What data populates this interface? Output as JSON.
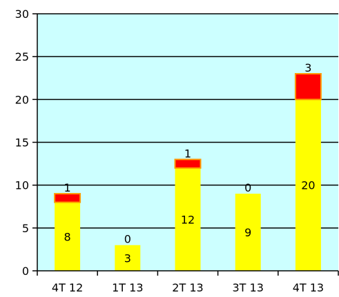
{
  "chart_data": {
    "type": "bar",
    "stacked": true,
    "title": "",
    "xlabel": "",
    "ylabel": "",
    "ylim": [
      0,
      30
    ],
    "yticks": [
      0,
      5,
      10,
      15,
      20,
      25,
      30
    ],
    "grid": "horizontal",
    "legend": "none",
    "categories": [
      "4T 12",
      "1T 13",
      "2T 13",
      "3T 13",
      "4T 13"
    ],
    "series": [
      {
        "values": [
          8,
          3,
          12,
          9,
          20
        ],
        "color": "#ffff00",
        "label_text": [
          "8",
          "3",
          "12",
          "9",
          "20"
        ]
      },
      {
        "values": [
          1,
          0,
          1,
          0,
          3
        ],
        "color": "#ff0000",
        "border_color": "#ff9900",
        "label_text": [
          "1",
          "0",
          "1",
          "0",
          "3"
        ]
      }
    ],
    "plot_background": "#ccffff",
    "gridline_color": "#000000"
  }
}
